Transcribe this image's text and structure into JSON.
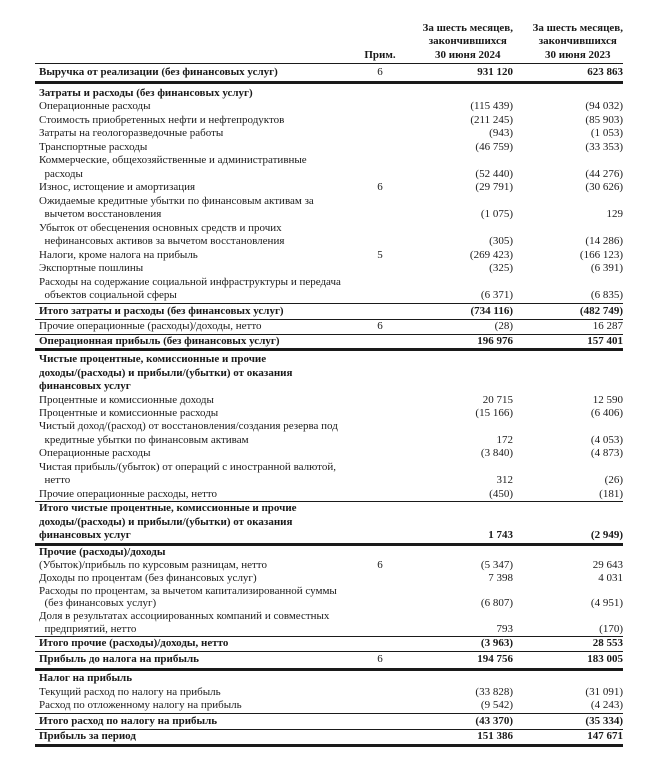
{
  "table": {
    "header": {
      "note": "Прим.",
      "period_2024": "За шесть месяцев,\nзакончившихся\n30 июня 2024",
      "period_2023": "За шесть месяцев,\nзакончившихся\n30 июня 2023"
    },
    "rows": [
      {
        "label": "Выручка от реализации (без финансовых услуг)",
        "note": "6",
        "v2024": "931 120",
        "v2023": "623 863",
        "type": "total",
        "rule_bottom": "thick"
      },
      {
        "label": "Затраты и расходы (без финансовых услуг)",
        "type": "section"
      },
      {
        "label": "Операционные расходы",
        "v2024": "(115 439)",
        "v2023": "(94 032)",
        "type": "item"
      },
      {
        "label": "Стоимость приобретенных нефти и нефтепродуктов",
        "v2024": "(211 245)",
        "v2023": "(85 903)",
        "type": "item"
      },
      {
        "label": "Затраты на геологоразведочные работы",
        "v2024": "(943)",
        "v2023": "(1 053)",
        "type": "item"
      },
      {
        "label": "Транспортные расходы",
        "v2024": "(46 759)",
        "v2023": "(33 353)",
        "type": "item"
      },
      {
        "label": "Коммерческие, общехозяйственные и административные\n  расходы",
        "v2024": "(52 440)",
        "v2023": "(44 276)",
        "type": "item"
      },
      {
        "label": "Износ, истощение и амортизация",
        "note": "6",
        "v2024": "(29 791)",
        "v2023": "(30 626)",
        "type": "item"
      },
      {
        "label": "Ожидаемые кредитные убытки по финансовым активам за\n  вычетом восстановления",
        "v2024": "(1 075)",
        "v2023": "129",
        "type": "item"
      },
      {
        "label": "Убыток от обесценения основных средств и прочих\n  нефинансовых активов за вычетом восстановления",
        "v2024": "(305)",
        "v2023": "(14 286)",
        "type": "item"
      },
      {
        "label": "Налоги, кроме налога на прибыль",
        "note": "5",
        "v2024": "(269 423)",
        "v2023": "(166 123)",
        "type": "item"
      },
      {
        "label": "Экспортные пошлины",
        "v2024": "(325)",
        "v2023": "(6 391)",
        "type": "item"
      },
      {
        "label": "Расходы на содержание социальной инфраструктуры и передача\n  объектов социальной сферы",
        "v2024": "(6 371)",
        "v2023": "(6 835)",
        "type": "item"
      },
      {
        "label": "Итого затраты и расходы (без финансовых услуг)",
        "v2024": "(734 116)",
        "v2023": "(482 749)",
        "type": "total",
        "rule_top": "thin",
        "rule_bottom": "thin"
      },
      {
        "label": "Прочие операционные (расходы)/доходы, нетто",
        "note": "6",
        "v2024": "(28)",
        "v2023": "16 287",
        "type": "item",
        "rule_bottom": "thin"
      },
      {
        "label": "Операционная прибыль (без финансовых услуг)",
        "v2024": "196 976",
        "v2023": "157 401",
        "type": "total",
        "rule_bottom": "thick"
      },
      {
        "label": "Чистые процентные, комиссионные и прочие\nдоходы/(расходы) и прибыли/(убытки) от оказания\nфинансовых услуг",
        "type": "section"
      },
      {
        "label": "Процентные и комиссионные доходы",
        "v2024": "20 715",
        "v2023": "12 590",
        "type": "item"
      },
      {
        "label": "Процентные и комиссионные расходы",
        "v2024": "(15 166)",
        "v2023": "(6 406)",
        "type": "item"
      },
      {
        "label": "Чистый доход/(расход) от восстановления/создания резерва под\n  кредитные убытки по финансовым активам",
        "v2024": "172",
        "v2023": "(4 053)",
        "type": "item"
      },
      {
        "label": "Операционные расходы",
        "v2024": "(3 840)",
        "v2023": "(4 873)",
        "type": "item"
      },
      {
        "label": "Чистая прибыль/(убыток) от операций с иностранной валютой,\n  нетто",
        "v2024": "312",
        "v2023": "(26)",
        "type": "item"
      },
      {
        "label": "Прочие операционные расходы, нетто",
        "v2024": "(450)",
        "v2023": "(181)",
        "type": "item"
      },
      {
        "label": "Итого чистые процентные, комиссионные и прочие\nдоходы/(расходы) и прибыли/(убытки) от оказания\nфинансовых услуг",
        "v2024": "1 743",
        "v2023": "(2 949)",
        "type": "total",
        "rule_top": "thin",
        "rule_bottom": "thick"
      },
      {
        "label": "Прочие (расходы)/доходы",
        "type": "section"
      },
      {
        "label": "(Убыток)/прибыль по курсовым разницам, нетто",
        "note": "6",
        "v2024": "(5 347)",
        "v2023": "29 643",
        "type": "item"
      },
      {
        "label": "Доходы по процентам (без финансовых услуг)",
        "v2024": "7 398",
        "v2023": "4 031",
        "type": "item"
      },
      {
        "label": "Расходы по процентам, за вычетом капитализированной суммы\n  (без финансовых услуг)",
        "v2024": "(6 807)",
        "v2023": "(4 951)",
        "type": "item"
      },
      {
        "label": "Доля в результатах ассоциированных компаний и совместных\n  предприятий, нетто",
        "v2024": "793",
        "v2023": "(170)",
        "type": "item"
      },
      {
        "label": "Итого прочие (расходы)/доходы, нетто",
        "v2024": "(3 963)",
        "v2023": "28 553",
        "type": "total",
        "rule_top": "thin",
        "rule_bottom": "thin"
      },
      {
        "label": "Прибыль до налога на прибыль",
        "note": "6",
        "v2024": "194 756",
        "v2023": "183 005",
        "type": "total",
        "rule_bottom": "thick"
      },
      {
        "label": "Налог на прибыль",
        "type": "section"
      },
      {
        "label": "Текущий расход по налогу на прибыль",
        "v2024": "(33 828)",
        "v2023": "(31 091)",
        "type": "item"
      },
      {
        "label": "Расход по отложенному налогу на прибыль",
        "v2024": "(9 542)",
        "v2023": "(4 243)",
        "type": "item"
      },
      {
        "label": "Итого расход по налогу на прибыль",
        "v2024": "(43 370)",
        "v2023": "(35 334)",
        "type": "total",
        "rule_top": "thin",
        "rule_bottom": "thin"
      },
      {
        "label": "Прибыль за период",
        "v2024": "151 386",
        "v2023": "147 671",
        "type": "total",
        "rule_bottom": "thick"
      }
    ]
  }
}
